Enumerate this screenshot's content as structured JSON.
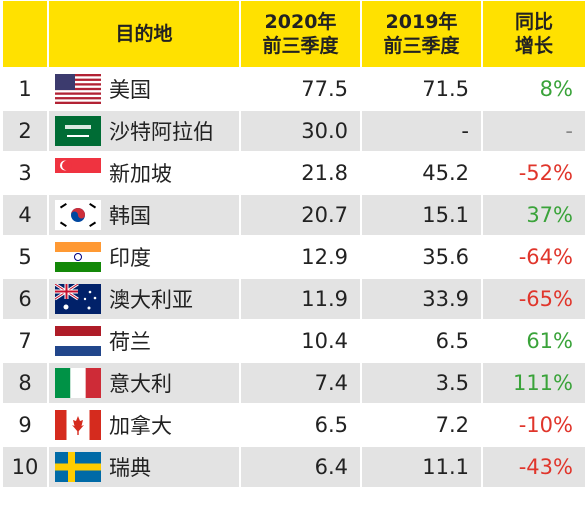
{
  "header": {
    "rank": "",
    "country": "目的地",
    "v2020_line1": "2020年",
    "v2020_line2": "前三季度",
    "v2019_line1": "2019年",
    "v2019_line2": "前三季度",
    "growth_line1": "同比",
    "growth_line2": "增长"
  },
  "rows": [
    {
      "rank": "1",
      "country": "美国",
      "flag": "usa-flag-icon",
      "v2020": "77.5",
      "v2019": "71.5",
      "growth": "8%",
      "trend": "up"
    },
    {
      "rank": "2",
      "country": "沙特阿拉伯",
      "flag": "saudi-flag-icon",
      "v2020": "30.0",
      "v2019": "-",
      "growth": "-",
      "trend": "flat"
    },
    {
      "rank": "3",
      "country": "新加坡",
      "flag": "singapore-flag-icon",
      "v2020": "21.8",
      "v2019": "45.2",
      "growth": "-52%",
      "trend": "down"
    },
    {
      "rank": "4",
      "country": "韩国",
      "flag": "korea-flag-icon",
      "v2020": "20.7",
      "v2019": "15.1",
      "growth": "37%",
      "trend": "up"
    },
    {
      "rank": "5",
      "country": "印度",
      "flag": "india-flag-icon",
      "v2020": "12.9",
      "v2019": "35.6",
      "growth": "-64%",
      "trend": "down"
    },
    {
      "rank": "6",
      "country": "澳大利亚",
      "flag": "australia-flag-icon",
      "v2020": "11.9",
      "v2019": "33.9",
      "growth": "-65%",
      "trend": "down"
    },
    {
      "rank": "7",
      "country": "荷兰",
      "flag": "netherlands-flag-icon",
      "v2020": "10.4",
      "v2019": "6.5",
      "growth": "61%",
      "trend": "up"
    },
    {
      "rank": "8",
      "country": "意大利",
      "flag": "italy-flag-icon",
      "v2020": "7.4",
      "v2019": "3.5",
      "growth": "111%",
      "trend": "up"
    },
    {
      "rank": "9",
      "country": "加拿大",
      "flag": "canada-flag-icon",
      "v2020": "6.5",
      "v2019": "7.2",
      "growth": "-10%",
      "trend": "down"
    },
    {
      "rank": "10",
      "country": "瑞典",
      "flag": "sweden-flag-icon",
      "v2020": "6.4",
      "v2019": "11.1",
      "growth": "-43%",
      "trend": "down"
    }
  ],
  "colors": {
    "header_bg": "#ffe100",
    "alt_row_bg": "#e3e3e3",
    "up": "#3aa33a",
    "down": "#e0352b",
    "flat": "#888888"
  }
}
